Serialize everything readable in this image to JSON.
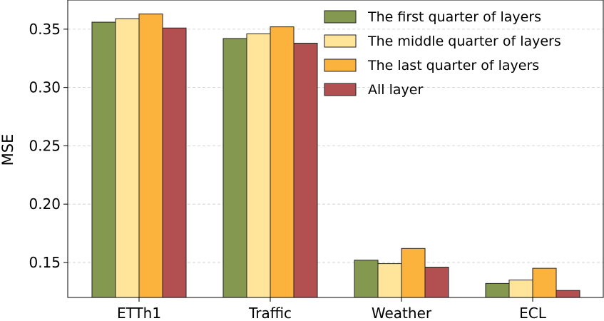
{
  "chart_data": {
    "type": "bar",
    "title": "",
    "xlabel": "",
    "ylabel": "MSE",
    "ylim": [
      0.12,
      0.375
    ],
    "yticks": [
      "0.15",
      "0.20",
      "0.25",
      "0.30",
      "0.35"
    ],
    "ytick_values": [
      0.15,
      0.2,
      0.25,
      0.3,
      0.35
    ],
    "grid": "horizontal dashed",
    "legend_position": "top-right",
    "categories": [
      "ETTh1",
      "Traffic",
      "Weather",
      "ECL"
    ],
    "series": [
      {
        "name": "The first quarter of layers",
        "color": "#84984f",
        "values": [
          0.356,
          0.342,
          0.152,
          0.132
        ]
      },
      {
        "name": "The middle quarter of layers",
        "color": "#ffe59a",
        "values": [
          0.359,
          0.346,
          0.149,
          0.135
        ]
      },
      {
        "name": "The last quarter of layers",
        "color": "#fbb33d",
        "values": [
          0.363,
          0.352,
          0.162,
          0.145
        ]
      },
      {
        "name": "All layer",
        "color": "#b24f51",
        "values": [
          0.351,
          0.338,
          0.146,
          0.126
        ]
      }
    ]
  }
}
